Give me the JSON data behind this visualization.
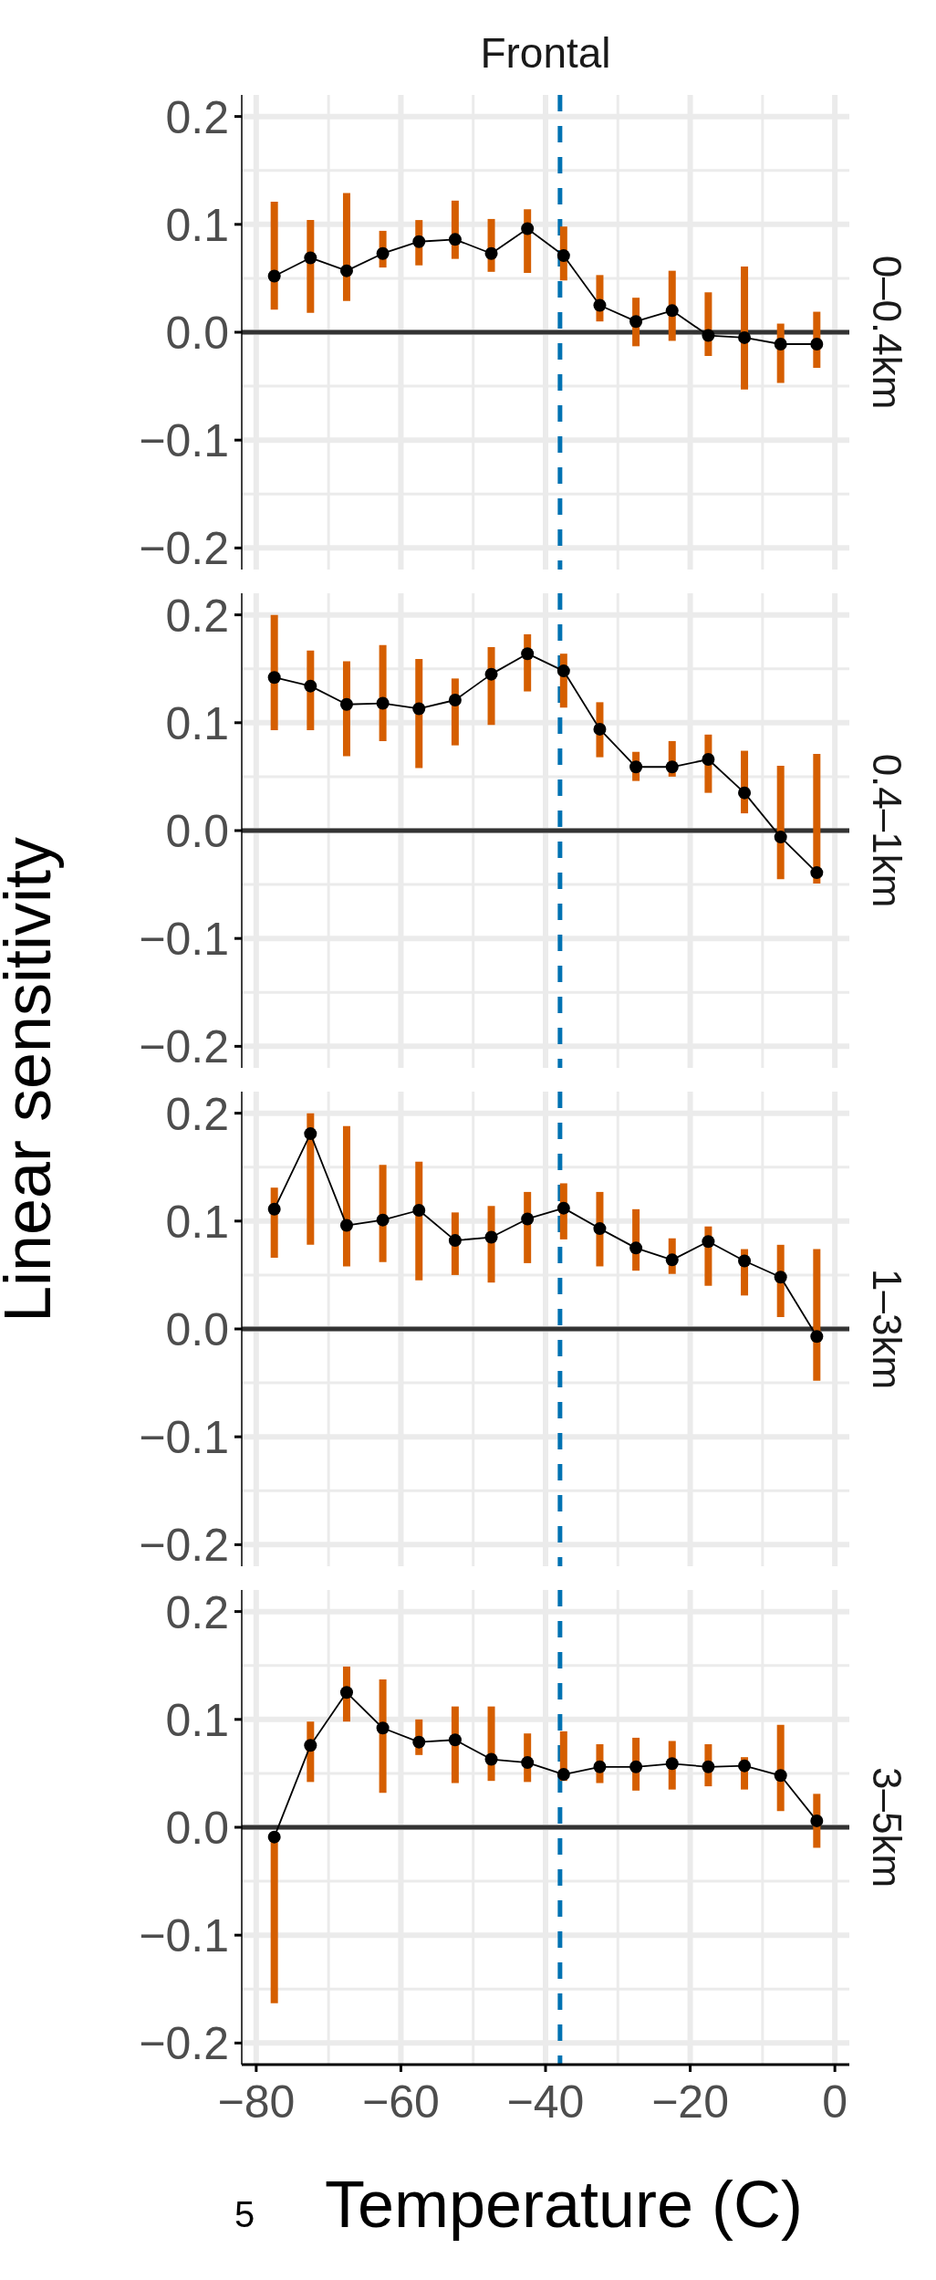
{
  "chart_data": [
    {
      "type": "line",
      "title": "Frontal",
      "subtitle": "0–0.4km",
      "ylabel": "Linear sensitivity",
      "tick_labels": "y",
      "marker": "circle",
      "grid": true,
      "xlim": [
        -82,
        2
      ],
      "xticks": [
        -80,
        -60,
        -40,
        -20,
        0
      ],
      "ylim": [
        -0.22,
        0.22
      ],
      "yticks": [
        {
          "value": -0.2,
          "label": "−0.2"
        },
        {
          "value": -0.1,
          "label": "−0.1"
        },
        {
          "value": 0,
          "label": "0.0"
        },
        {
          "value": 0.1,
          "label": "0.1"
        },
        {
          "value": 0.2,
          "label": "0.2"
        }
      ],
      "ref_lines": [
        {
          "axis": "y",
          "value": 0,
          "color": "#333333",
          "line_style": "solid"
        },
        {
          "axis": "x",
          "value": -38,
          "color": "#0072b2",
          "line_style": "dashed"
        }
      ],
      "series": [
        {
          "color": "#000000",
          "x": [
            -77.5,
            -72.5,
            -67.5,
            -62.5,
            -57.5,
            -52.5,
            -47.5,
            -42.5,
            -37.5,
            -32.5,
            -27.5,
            -22.5,
            -17.5,
            -12.5,
            -7.5,
            -2.5
          ],
          "values": [
            0.052,
            0.069,
            0.057,
            0.073,
            0.084,
            0.086,
            0.073,
            0.096,
            0.071,
            0.025,
            0.01,
            0.02,
            -0.003,
            -0.005,
            -0.011,
            -0.011
          ],
          "errors": [
            [
              0.021,
              0.121
            ],
            [
              0.018,
              0.104
            ],
            [
              0.029,
              0.129
            ],
            [
              0.06,
              0.094
            ],
            [
              0.062,
              0.104
            ],
            [
              0.068,
              0.122
            ],
            [
              0.056,
              0.105
            ],
            [
              0.055,
              0.114
            ],
            [
              0.048,
              0.098
            ],
            [
              0.01,
              0.053
            ],
            [
              -0.013,
              0.032
            ],
            [
              -0.008,
              0.057
            ],
            [
              -0.022,
              0.037
            ],
            [
              -0.053,
              0.061
            ],
            [
              -0.047,
              0.008
            ],
            [
              -0.033,
              0.019
            ]
          ]
        }
      ]
    },
    {
      "type": "line",
      "subtitle": "0.4–1km",
      "tick_labels": "y",
      "marker": "circle",
      "grid": true,
      "xlim": [
        -82,
        2
      ],
      "xticks": [
        -80,
        -60,
        -40,
        -20,
        0
      ],
      "ylim": [
        -0.22,
        0.22
      ],
      "yticks": [
        {
          "value": -0.2,
          "label": "−0.2"
        },
        {
          "value": -0.1,
          "label": "−0.1"
        },
        {
          "value": 0,
          "label": "0.0"
        },
        {
          "value": 0.1,
          "label": "0.1"
        },
        {
          "value": 0.2,
          "label": "0.2"
        }
      ],
      "ref_lines": [
        {
          "axis": "y",
          "value": 0,
          "color": "#333333",
          "line_style": "solid"
        },
        {
          "axis": "x",
          "value": -38,
          "color": "#0072b2",
          "line_style": "dashed"
        }
      ],
      "series": [
        {
          "color": "#000000",
          "x": [
            -77.5,
            -72.5,
            -67.5,
            -62.5,
            -57.5,
            -52.5,
            -47.5,
            -42.5,
            -37.5,
            -32.5,
            -27.5,
            -22.5,
            -17.5,
            -12.5,
            -7.5,
            -2.5
          ],
          "values": [
            0.142,
            0.134,
            0.117,
            0.118,
            0.113,
            0.121,
            0.145,
            0.164,
            0.148,
            0.094,
            0.059,
            0.059,
            0.066,
            0.035,
            -0.006,
            -0.039
          ],
          "errors": [
            [
              0.093,
              0.2
            ],
            [
              0.093,
              0.167
            ],
            [
              0.069,
              0.157
            ],
            [
              0.083,
              0.172
            ],
            [
              0.058,
              0.159
            ],
            [
              0.079,
              0.141
            ],
            [
              0.098,
              0.17
            ],
            [
              0.129,
              0.182
            ],
            [
              0.114,
              0.164
            ],
            [
              0.068,
              0.119
            ],
            [
              0.046,
              0.073
            ],
            [
              0.05,
              0.083
            ],
            [
              0.035,
              0.089
            ],
            [
              0.016,
              0.074
            ],
            [
              -0.045,
              0.06
            ],
            [
              -0.049,
              0.071
            ]
          ]
        }
      ]
    },
    {
      "type": "line",
      "subtitle": "1–3km",
      "tick_labels": "y",
      "marker": "circle",
      "grid": true,
      "xlim": [
        -82,
        2
      ],
      "xticks": [
        -80,
        -60,
        -40,
        -20,
        0
      ],
      "ylim": [
        -0.22,
        0.22
      ],
      "yticks": [
        {
          "value": -0.2,
          "label": "−0.2"
        },
        {
          "value": -0.1,
          "label": "−0.1"
        },
        {
          "value": 0,
          "label": "0.0"
        },
        {
          "value": 0.1,
          "label": "0.1"
        },
        {
          "value": 0.2,
          "label": "0.2"
        }
      ],
      "ref_lines": [
        {
          "axis": "y",
          "value": 0,
          "color": "#333333",
          "line_style": "solid"
        },
        {
          "axis": "x",
          "value": -38,
          "color": "#0072b2",
          "line_style": "dashed"
        }
      ],
      "series": [
        {
          "color": "#000000",
          "x": [
            -77.5,
            -72.5,
            -67.5,
            -62.5,
            -57.5,
            -52.5,
            -47.5,
            -42.5,
            -37.5,
            -32.5,
            -27.5,
            -22.5,
            -17.5,
            -12.5,
            -7.5,
            -2.5
          ],
          "values": [
            0.111,
            0.181,
            0.096,
            0.101,
            0.11,
            0.082,
            0.085,
            0.102,
            0.112,
            0.093,
            0.075,
            0.064,
            0.081,
            0.063,
            0.048,
            -0.007
          ],
          "errors": [
            [
              0.066,
              0.131
            ],
            [
              0.078,
              0.2
            ],
            [
              0.058,
              0.188
            ],
            [
              0.062,
              0.152
            ],
            [
              0.045,
              0.155
            ],
            [
              0.05,
              0.108
            ],
            [
              0.043,
              0.114
            ],
            [
              0.061,
              0.127
            ],
            [
              0.083,
              0.135
            ],
            [
              0.058,
              0.127
            ],
            [
              0.054,
              0.111
            ],
            [
              0.051,
              0.084
            ],
            [
              0.04,
              0.095
            ],
            [
              0.031,
              0.074
            ],
            [
              0.011,
              0.078
            ],
            [
              -0.048,
              0.074
            ]
          ]
        }
      ]
    },
    {
      "type": "line",
      "subtitle": "3–5km",
      "xlabel": "Temperature (C)",
      "marker": "circle",
      "grid": true,
      "xlim": [
        -82,
        2
      ],
      "xticks": [
        {
          "value": -80,
          "label": "−80"
        },
        {
          "value": -60,
          "label": "−60"
        },
        {
          "value": -40,
          "label": "−40"
        },
        {
          "value": -20,
          "label": "−20"
        },
        0
      ],
      "ylim": [
        -0.22,
        0.22
      ],
      "yticks": [
        {
          "value": -0.2,
          "label": "−0.2"
        },
        {
          "value": -0.1,
          "label": "−0.1"
        },
        {
          "value": 0,
          "label": "0.0"
        },
        {
          "value": 0.1,
          "label": "0.1"
        },
        {
          "value": 0.2,
          "label": "0.2"
        }
      ],
      "annotations": [
        "5"
      ],
      "ref_lines": [
        {
          "axis": "y",
          "value": 0,
          "color": "#333333",
          "line_style": "solid"
        },
        {
          "axis": "x",
          "value": -38,
          "color": "#0072b2",
          "line_style": "dashed"
        }
      ],
      "series": [
        {
          "color": "#000000",
          "x": [
            -77.5,
            -72.5,
            -67.5,
            -62.5,
            -57.5,
            -52.5,
            -47.5,
            -42.5,
            -37.5,
            -32.5,
            -27.5,
            -22.5,
            -17.5,
            -12.5,
            -7.5,
            -2.5
          ],
          "values": [
            -0.009,
            0.076,
            0.125,
            0.092,
            0.079,
            0.081,
            0.063,
            0.06,
            0.049,
            0.056,
            0.056,
            0.059,
            0.056,
            0.057,
            0.048,
            0.006
          ],
          "errors": [
            [
              -0.163,
              -0.006
            ],
            [
              0.042,
              0.098
            ],
            [
              0.098,
              0.149
            ],
            [
              0.032,
              0.137
            ],
            [
              0.067,
              0.1
            ],
            [
              0.041,
              0.112
            ],
            [
              0.043,
              0.112
            ],
            [
              0.042,
              0.087
            ],
            [
              0.043,
              0.089
            ],
            [
              0.041,
              0.077
            ],
            [
              0.034,
              0.083
            ],
            [
              0.035,
              0.08
            ],
            [
              0.038,
              0.077
            ],
            [
              0.035,
              0.065
            ],
            [
              0.015,
              0.095
            ],
            [
              -0.019,
              0.031
            ]
          ]
        }
      ]
    }
  ]
}
